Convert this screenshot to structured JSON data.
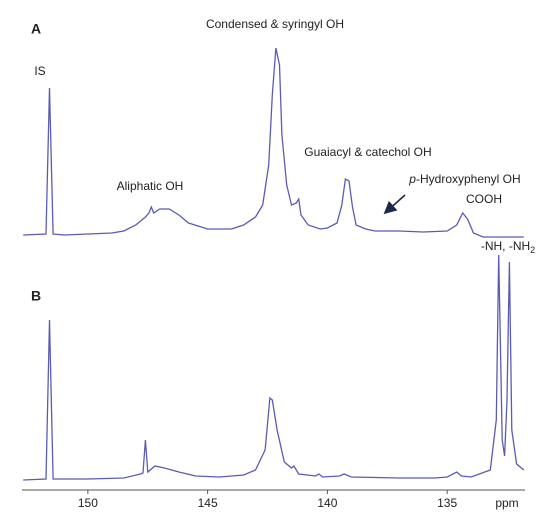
{
  "chart_data": [
    {
      "type": "line",
      "label": "A",
      "color": "#5b5bb5",
      "xlim": [
        152.75,
        131.75
      ],
      "ylim": [
        -5,
        105
      ],
      "x": [
        152.7,
        151.75,
        151.6,
        151.45,
        151.0,
        150.0,
        149.0,
        148.5,
        148.0,
        147.6,
        147.45,
        147.35,
        147.25,
        147.0,
        146.6,
        146.2,
        145.8,
        145.0,
        144.0,
        143.5,
        143.0,
        142.7,
        142.45,
        142.3,
        142.15,
        142.0,
        141.9,
        141.7,
        141.5,
        141.3,
        141.2,
        141.1,
        140.8,
        140.3,
        140.0,
        139.6,
        139.4,
        139.25,
        139.1,
        138.95,
        138.8,
        138.4,
        138.0,
        137.0,
        136.0,
        135.0,
        134.6,
        134.35,
        134.15,
        133.9,
        133.5,
        132.5,
        131.8
      ],
      "values": [
        0,
        0.5,
        73.5,
        0.5,
        0,
        0.5,
        1,
        2,
        5,
        9,
        11,
        14,
        11,
        13,
        13,
        10,
        6,
        3,
        3,
        5,
        9,
        15,
        35,
        70,
        93.5,
        85,
        50,
        25,
        15,
        16,
        18,
        10,
        5,
        3,
        3.5,
        6,
        15,
        28,
        27,
        14,
        5,
        3,
        2,
        2,
        1.5,
        2,
        5,
        11,
        8,
        1,
        -1,
        -1,
        -1
      ],
      "annotations": [
        {
          "text": "IS"
        },
        {
          "text": "Aliphatic OH"
        },
        {
          "text": "Condensed & syringyl OH"
        },
        {
          "text": "Guaiacyl & catechol OH"
        },
        {
          "italic": "p",
          "text": "-Hydroxyphenyl OH"
        },
        {
          "text": "COOH"
        }
      ]
    },
    {
      "type": "line",
      "label": "B",
      "color": "#5b5bb5",
      "xlim": [
        152.75,
        131.75
      ],
      "ylim": [
        -5,
        115
      ],
      "xticks": [
        150,
        145,
        140,
        135
      ],
      "xlabel": "ppm",
      "x": [
        152.7,
        151.75,
        151.6,
        151.45,
        150.0,
        148.5,
        147.8,
        147.7,
        147.6,
        147.5,
        147.2,
        146.8,
        146.2,
        145.5,
        144.5,
        143.5,
        143.0,
        142.6,
        142.4,
        142.3,
        142.1,
        141.8,
        141.5,
        141.4,
        141.2,
        140.5,
        140.35,
        140.2,
        139.5,
        139.3,
        139.0,
        137.0,
        135.5,
        135.0,
        134.6,
        134.4,
        134.0,
        133.2,
        132.95,
        132.85,
        132.7,
        132.6,
        132.5,
        132.4,
        132.3,
        132.1,
        131.8
      ],
      "values": [
        0,
        0.5,
        80,
        0.5,
        0.5,
        1,
        3,
        3.5,
        20,
        4,
        7,
        6,
        4,
        2,
        1.5,
        2.5,
        5,
        15,
        41,
        40,
        25,
        9,
        6,
        7,
        3,
        2,
        3,
        1.5,
        2,
        3,
        1.5,
        1,
        1,
        1.5,
        4,
        2,
        1.5,
        5,
        30,
        112.5,
        20,
        12,
        40,
        109,
        25,
        8,
        5
      ],
      "annotations": [
        {
          "text": "-NH, -NH",
          "sub": "2"
        }
      ]
    }
  ]
}
